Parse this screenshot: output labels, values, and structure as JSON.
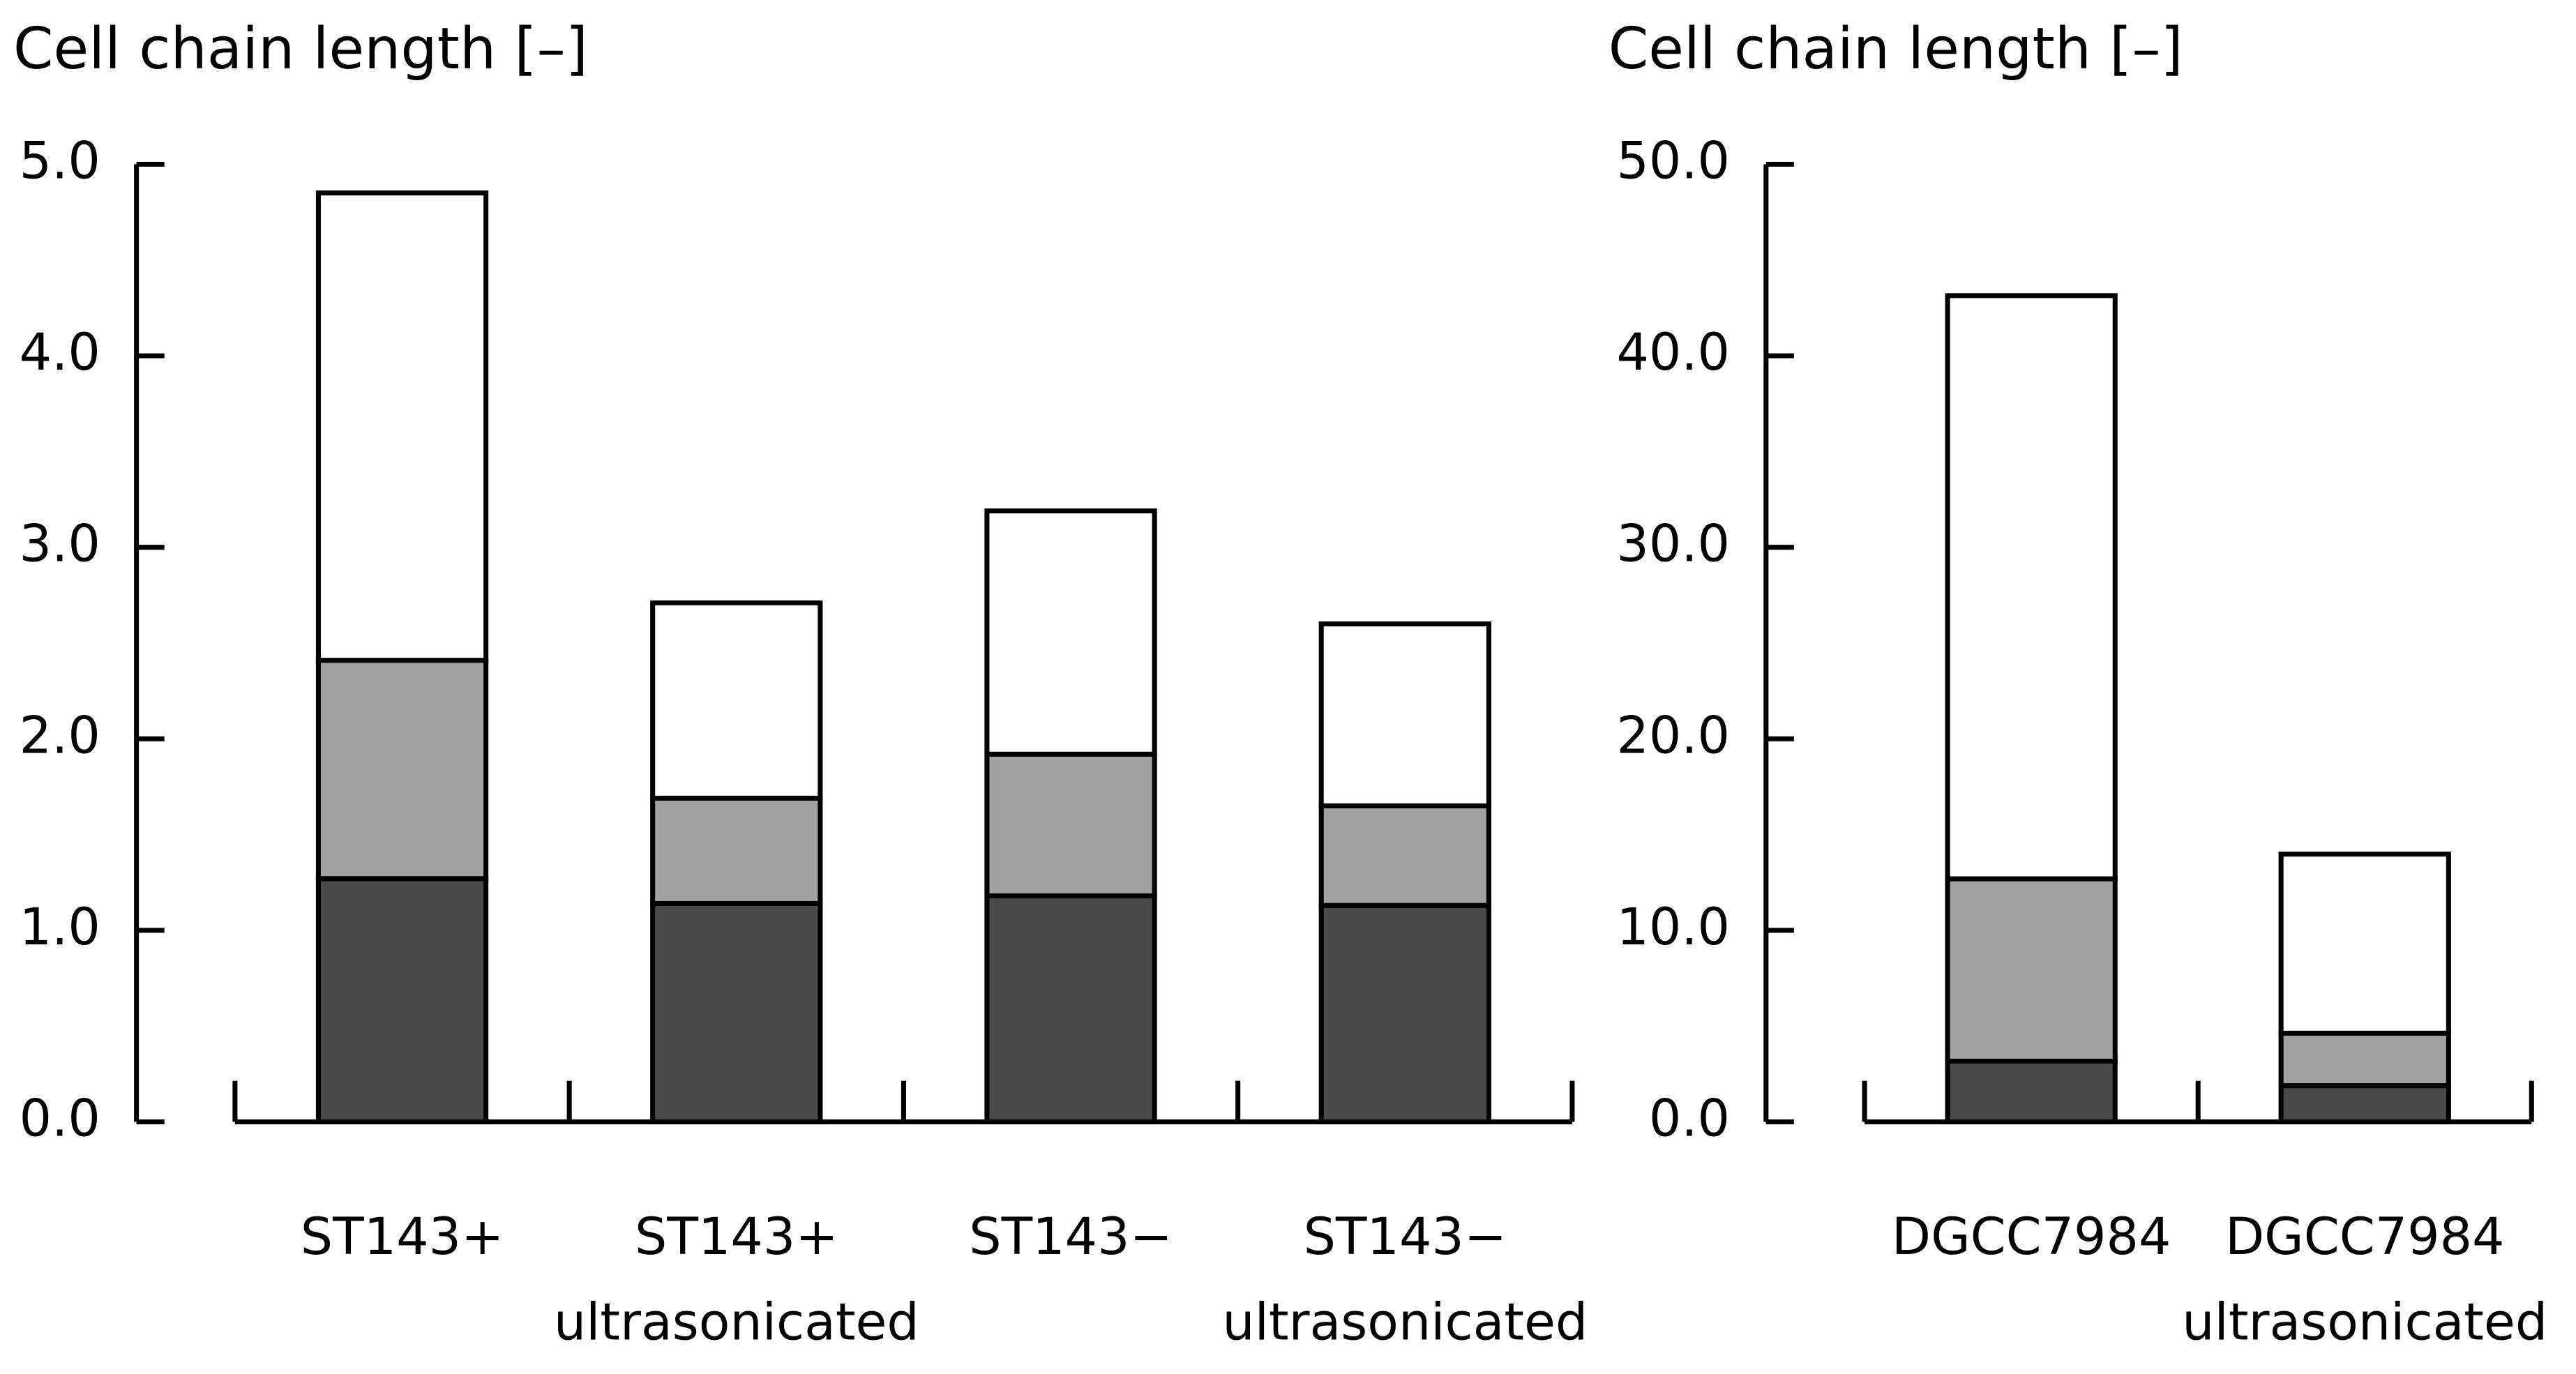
{
  "chart_data": [
    {
      "type": "bar",
      "stacked": true,
      "title": "Cell chain length [–]",
      "categories": [
        [
          "ST143+"
        ],
        [
          "ST143+",
          "ultrasonicated"
        ],
        [
          "ST143−"
        ],
        [
          "ST143−",
          "ultrasonicated"
        ]
      ],
      "series": [
        {
          "color": "#4a4a4a",
          "values": [
            1.27,
            1.14,
            1.18,
            1.13
          ]
        },
        {
          "color": "#a2a2a2",
          "values": [
            1.14,
            0.55,
            0.74,
            0.52
          ]
        },
        {
          "color": "#ffffff",
          "values": [
            2.44,
            1.02,
            1.27,
            0.95
          ]
        }
      ],
      "ylim": [
        0,
        5
      ],
      "yticks": [
        {
          "value": 0,
          "label": "0.0"
        },
        {
          "value": 1,
          "label": "1.0"
        },
        {
          "value": 2,
          "label": "2.0"
        },
        {
          "value": 3,
          "label": "3.0"
        },
        {
          "value": 4,
          "label": "4.0"
        },
        {
          "value": 5,
          "label": "5.0"
        }
      ]
    },
    {
      "type": "bar",
      "stacked": true,
      "title": "Cell chain length [–]",
      "categories": [
        [
          "DGCC7984"
        ],
        [
          "DGCC7984",
          "ultrasonicated"
        ]
      ],
      "series": [
        {
          "color": "#4a4a4a",
          "values": [
            3.17,
            1.89
          ]
        },
        {
          "color": "#a2a2a2",
          "values": [
            9.52,
            2.74
          ]
        },
        {
          "color": "#ffffff",
          "values": [
            30.45,
            9.35
          ]
        }
      ],
      "ylim": [
        0,
        50
      ],
      "yticks": [
        {
          "value": 0,
          "label": "0.0"
        },
        {
          "value": 10,
          "label": "10.0"
        },
        {
          "value": 20,
          "label": "20.0"
        },
        {
          "value": 30,
          "label": "30.0"
        },
        {
          "value": 40,
          "label": "40.0"
        },
        {
          "value": 50,
          "label": "50.0"
        }
      ]
    }
  ]
}
